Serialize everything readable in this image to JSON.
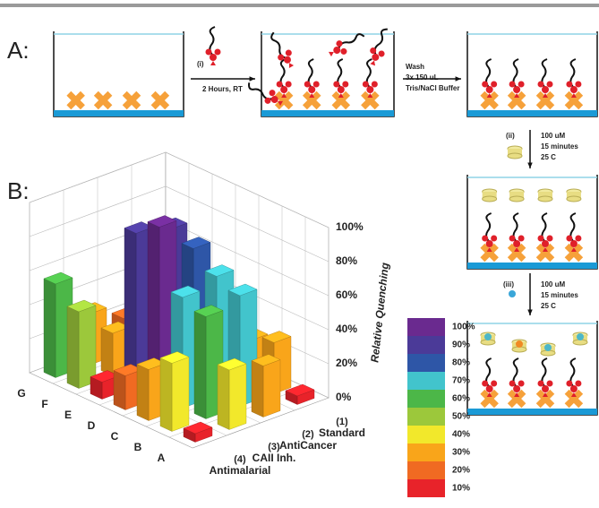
{
  "panel_a": {
    "label": "A:",
    "step_1": {
      "number": "(i)",
      "condition": "2 Hours, RT"
    },
    "wash": [
      "Wash",
      "3x 150 uL",
      "Tris/NaCl Buffer"
    ],
    "step_2": {
      "number": "(ii)",
      "conditions": [
        "100 uM",
        "15 minutes",
        "25 C"
      ]
    },
    "step_3": {
      "number": "(iii)",
      "conditions": [
        "100 uM",
        "15 minutes",
        "25 C"
      ]
    }
  },
  "chart_data": {
    "type": "bar3d",
    "label": "B:",
    "categories": [
      "A",
      "B",
      "C",
      "D",
      "E",
      "F",
      "G"
    ],
    "series": [
      {
        "number": "(1)",
        "name": "Standard",
        "values": [
          5,
          30,
          25,
          35,
          40,
          10,
          15
        ]
      },
      {
        "number": "(2)",
        "name": "AntiCancer",
        "values": [
          30,
          65,
          70,
          80,
          85,
          35,
          20
        ]
      },
      {
        "number": "(3)",
        "name": "CAII Inh.",
        "values": [
          35,
          60,
          65,
          100,
          90,
          25,
          30
        ]
      },
      {
        "number": "(4)",
        "name": "Antimalarial",
        "values": [
          5,
          40,
          30,
          20,
          10,
          45,
          55
        ]
      }
    ],
    "zlabel": "Relative Quenching",
    "zlim": [
      0,
      100
    ],
    "zticks": [
      {
        "value": 0,
        "label": "0%"
      },
      {
        "value": 20,
        "label": "20%"
      },
      {
        "value": 40,
        "label": "40%"
      },
      {
        "value": 60,
        "label": "60%"
      },
      {
        "value": 80,
        "label": "80%"
      },
      {
        "value": 100,
        "label": "100%"
      }
    ],
    "grid": true,
    "colorbar": [
      {
        "value": 10,
        "label": "10%",
        "color": "#e8232a"
      },
      {
        "value": 20,
        "label": "20%",
        "color": "#f06a22"
      },
      {
        "value": 30,
        "label": "30%",
        "color": "#f9a51a"
      },
      {
        "value": 40,
        "label": "40%",
        "color": "#f2e82b"
      },
      {
        "value": 50,
        "label": "50%",
        "color": "#9cc83b"
      },
      {
        "value": 60,
        "label": "60%",
        "color": "#4cb748"
      },
      {
        "value": 70,
        "label": "70%",
        "color": "#42c4cc"
      },
      {
        "value": 80,
        "label": "80%",
        "color": "#2e56a7"
      },
      {
        "value": 90,
        "label": "90%",
        "color": "#4b3a98"
      },
      {
        "value": 100,
        "label": "100%",
        "color": "#6a2a8f"
      }
    ]
  }
}
